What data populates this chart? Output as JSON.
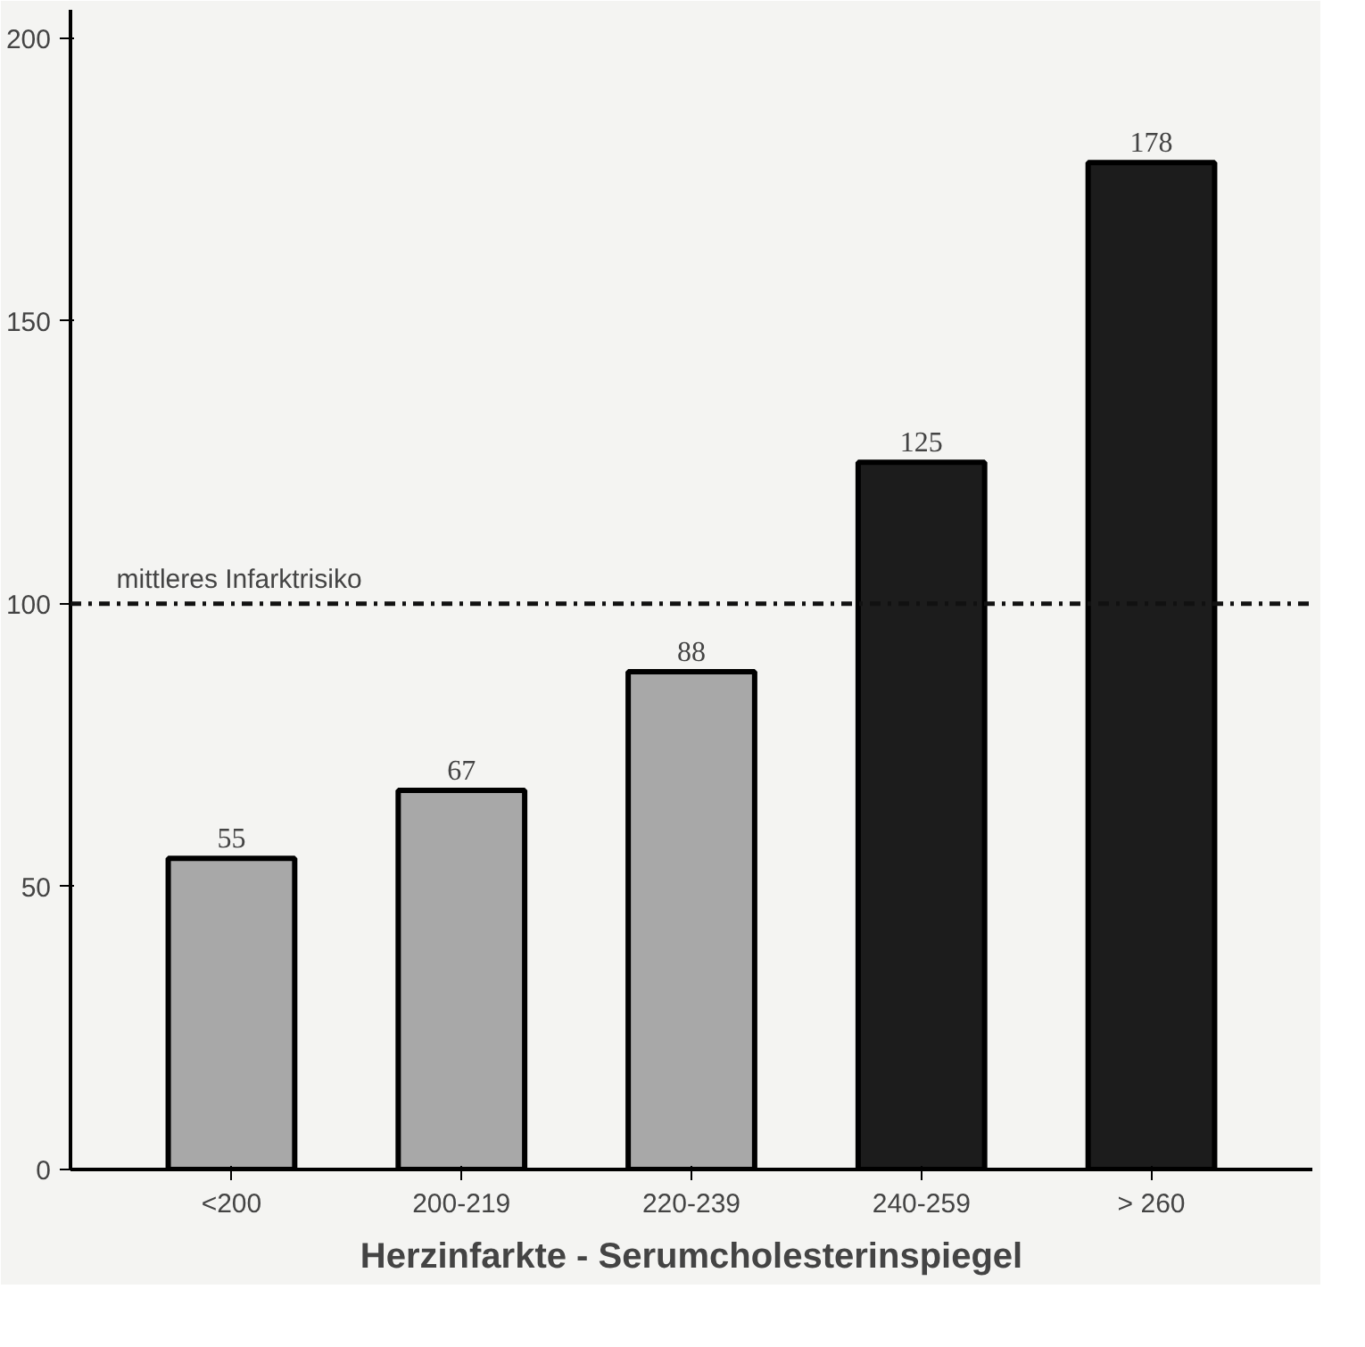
{
  "chart_data": {
    "type": "bar",
    "title": "Herzinfarkte - Serumcholesterinspiegel",
    "categories": [
      "<200",
      "200-219",
      "220-239",
      "240-259",
      "> 260"
    ],
    "values": [
      55,
      67,
      88,
      125,
      178
    ],
    "colors": [
      "#a8a8a8",
      "#a8a8a8",
      "#a8a8a8",
      "#1c1c1c",
      "#1c1c1c"
    ],
    "data_labels": true,
    "ylim": [
      0,
      205
    ],
    "yticks": [
      0,
      50,
      100,
      150,
      200
    ],
    "ref_lines": [
      {
        "axis": "y",
        "value": 100,
        "label": "mittleres Infarktrisiko",
        "line_style": "dashdot",
        "color": "#111111"
      }
    ],
    "grid": false
  }
}
